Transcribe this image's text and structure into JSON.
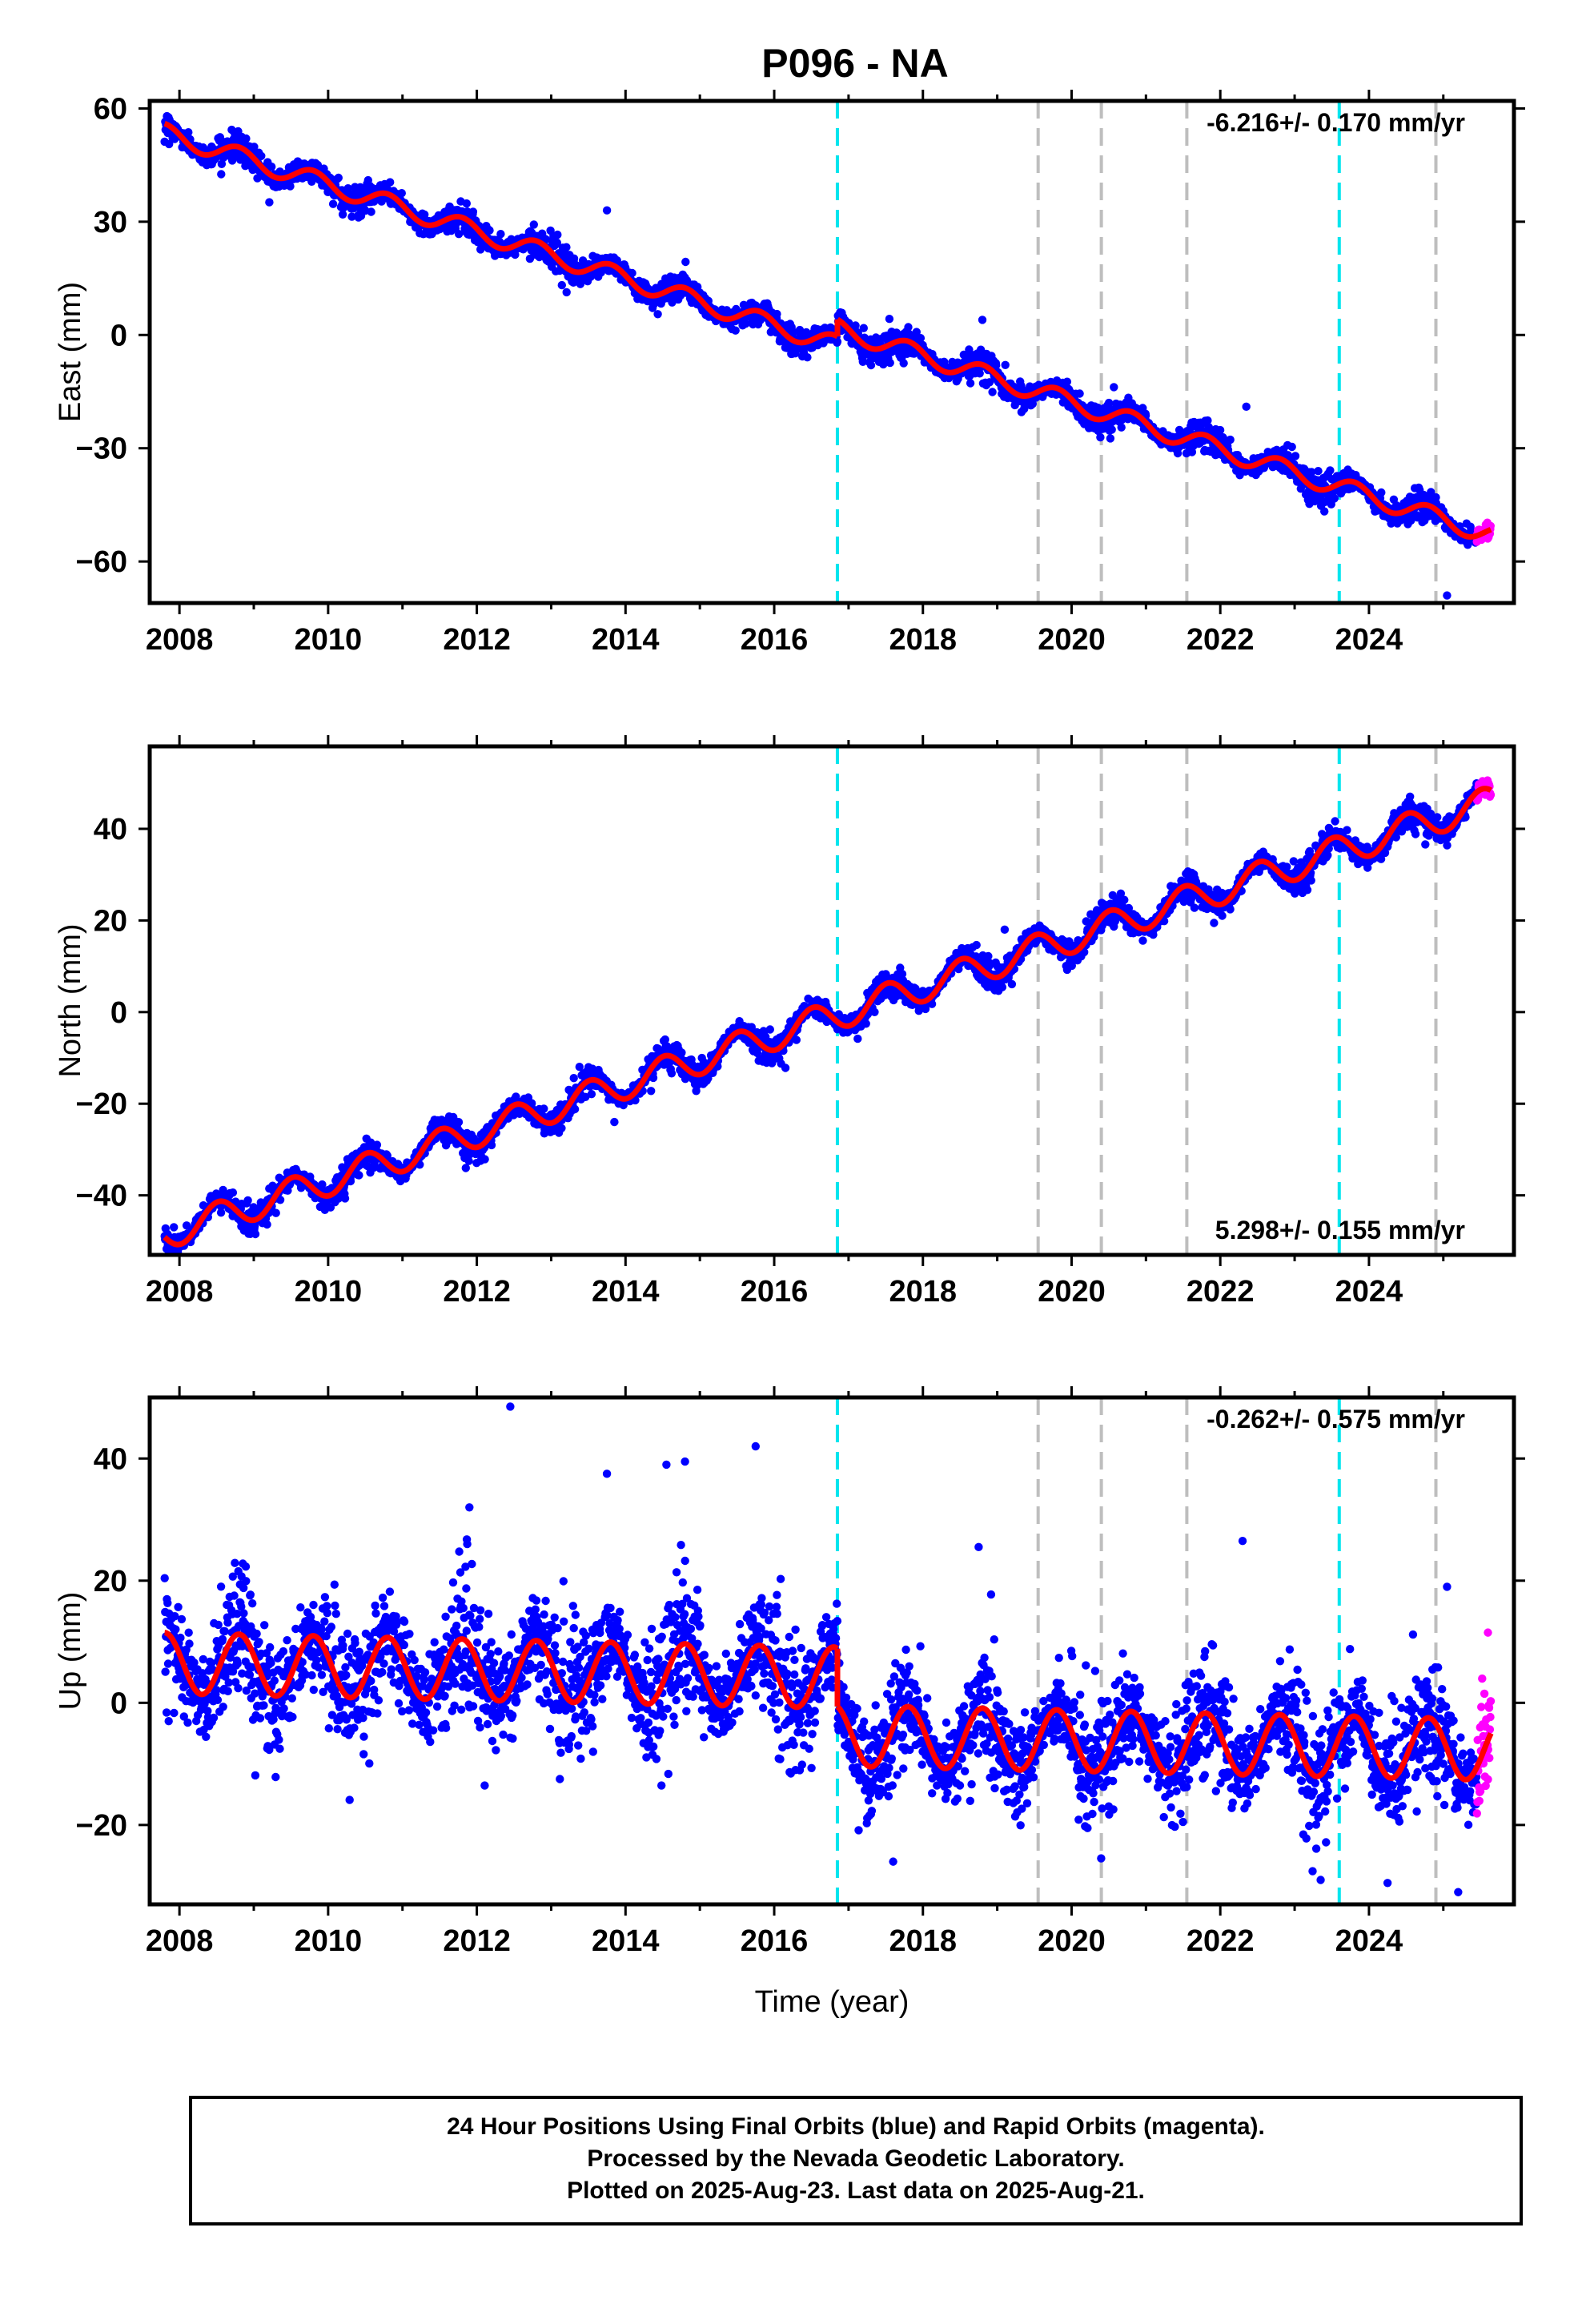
{
  "figure": {
    "title": "P096 - NA",
    "footer": [
      "24 Hour Positions Using Final Orbits (blue) and Rapid Orbits (magenta).",
      "Processed by the Nevada Geodetic Laboratory.",
      "Plotted on 2025-Aug-23. Last data on 2025-Aug-21."
    ]
  },
  "colors": {
    "final_orbits": "#0000ff",
    "rapid_orbits": "#ff00ff",
    "model_fit": "#ff0000",
    "equipment_change": "#00e5ee",
    "other_event": "#bebebe"
  },
  "chart_data": [
    {
      "type": "scatter",
      "component": "east",
      "ylabel": "East (mm)",
      "xlim": [
        2007.6,
        2025.95
      ],
      "ylim": [
        -71,
        62
      ],
      "xticks": [
        2008,
        2010,
        2012,
        2014,
        2016,
        2018,
        2020,
        2022,
        2024
      ],
      "yticks": [
        60,
        30,
        0,
        -30,
        -60
      ],
      "ytick_labels": [
        "60",
        "30",
        "0",
        "−30",
        "−60"
      ],
      "rate_label": "-6.216+/- 0.170 mm/yr",
      "rate_label_position": "top-right",
      "model": {
        "start": 53.5,
        "rate_mm_per_yr": -6.216,
        "seasonal_amplitude": 2.5,
        "seasonal_phase": 0.0
      },
      "offsets": [
        {
          "year": 2016.85,
          "jump": 4.5
        }
      ],
      "noise_sd": 1.6,
      "series": [
        {
          "color_key": "final_orbits",
          "x_range": [
            2007.8,
            2025.45
          ],
          "approx_points": 3000
        },
        {
          "color_key": "rapid_orbits",
          "x_range": [
            2025.45,
            2025.64
          ],
          "approx_points": 35
        }
      ],
      "outliers": [
        {
          "x": 2013.75,
          "y": 33
        },
        {
          "x": 2018.8,
          "y": 4
        },
        {
          "x": 2022.35,
          "y": -19
        },
        {
          "x": 2025.05,
          "y": -69
        }
      ]
    },
    {
      "type": "scatter",
      "component": "north",
      "ylabel": "North (mm)",
      "xlim": [
        2007.6,
        2025.95
      ],
      "ylim": [
        -53,
        58
      ],
      "xticks": [
        2008,
        2010,
        2012,
        2014,
        2016,
        2018,
        2020,
        2022,
        2024
      ],
      "yticks": [
        40,
        20,
        0,
        -20,
        -40
      ],
      "ytick_labels": [
        "40",
        "20",
        "0",
        "−20",
        "−40"
      ],
      "rate_label": "5.298+/- 0.155 mm/yr",
      "rate_label_position": "bottom-right",
      "model": {
        "start": -48.5,
        "rate_mm_per_yr": 5.298,
        "seasonal_amplitude": 3.3,
        "seasonal_phase": 0.72
      },
      "offsets": [],
      "noise_sd": 1.3,
      "series": [
        {
          "color_key": "final_orbits",
          "x_range": [
            2007.8,
            2025.45
          ],
          "approx_points": 3000
        },
        {
          "color_key": "rapid_orbits",
          "x_range": [
            2025.45,
            2025.64
          ],
          "approx_points": 35
        }
      ],
      "outliers": [
        {
          "x": 2013.85,
          "y": -24
        },
        {
          "x": 2019.1,
          "y": 18
        }
      ]
    },
    {
      "type": "scatter",
      "component": "up",
      "ylabel": "Up (mm)",
      "xlabel": "Time (year)",
      "xlim": [
        2007.6,
        2025.95
      ],
      "ylim": [
        -33,
        50
      ],
      "xticks": [
        2008,
        2010,
        2012,
        2014,
        2016,
        2018,
        2020,
        2022,
        2024
      ],
      "yticks": [
        40,
        20,
        0,
        -20
      ],
      "ytick_labels": [
        "40",
        "20",
        "0",
        "−20"
      ],
      "rate_label": "-0.262+/- 0.575 mm/yr",
      "rate_label_position": "top-right",
      "model": {
        "start": 6.5,
        "rate_mm_per_yr": -0.262,
        "seasonal_amplitude": 5.0,
        "seasonal_phase": 0.0
      },
      "offsets": [
        {
          "year": 2016.85,
          "jump": -9.5
        }
      ],
      "noise_sd": 4.6,
      "series": [
        {
          "color_key": "final_orbits",
          "x_range": [
            2007.8,
            2025.45
          ],
          "approx_points": 3400
        },
        {
          "color_key": "rapid_orbits",
          "x_range": [
            2025.45,
            2025.64
          ],
          "approx_points": 35
        }
      ],
      "outliers": [
        {
          "x": 2012.45,
          "y": 48.5
        },
        {
          "x": 2015.75,
          "y": 42
        },
        {
          "x": 2013.75,
          "y": 37.5
        },
        {
          "x": 2014.8,
          "y": 39.5
        },
        {
          "x": 2014.55,
          "y": 39
        },
        {
          "x": 2011.9,
          "y": 32
        },
        {
          "x": 2022.3,
          "y": 26.5
        },
        {
          "x": 2018.75,
          "y": 25.5
        },
        {
          "x": 2025.05,
          "y": 19
        },
        {
          "x": 2025.6,
          "y": 11.5
        },
        {
          "x": 2023.35,
          "y": -29
        },
        {
          "x": 2024.25,
          "y": -29.5
        },
        {
          "x": 2025.2,
          "y": -31
        },
        {
          "x": 2017.6,
          "y": -26
        }
      ]
    }
  ],
  "vertical_markers": [
    {
      "year": 2016.85,
      "color_key": "equipment_change"
    },
    {
      "year": 2019.55,
      "color_key": "other_event"
    },
    {
      "year": 2020.4,
      "color_key": "other_event"
    },
    {
      "year": 2021.55,
      "color_key": "other_event"
    },
    {
      "year": 2023.6,
      "color_key": "equipment_change"
    },
    {
      "year": 2024.9,
      "color_key": "other_event"
    }
  ]
}
